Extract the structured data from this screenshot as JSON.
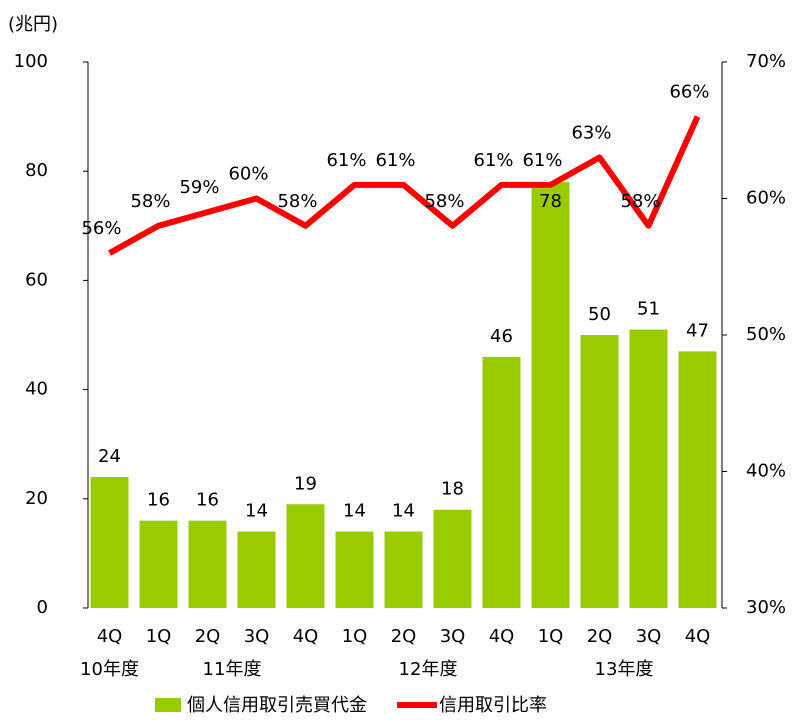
{
  "chart_data": {
    "type": "bar_line",
    "y_unit_label": "(兆円)",
    "categories": [
      "4Q",
      "1Q",
      "2Q",
      "3Q",
      "4Q",
      "1Q",
      "2Q",
      "3Q",
      "4Q",
      "1Q",
      "2Q",
      "3Q",
      "4Q"
    ],
    "category_groups": [
      "10年度",
      "11年度",
      "11年度",
      "11年度",
      "11年度",
      "12年度",
      "12年度",
      "12年度",
      "12年度",
      "13年度",
      "13年度",
      "13年度",
      "13年度"
    ],
    "series": [
      {
        "name": "個人信用取引売買代金",
        "type": "bar",
        "color": "#99cc00",
        "values": [
          24,
          16,
          16,
          14,
          19,
          14,
          14,
          18,
          46,
          78,
          50,
          51,
          47
        ]
      },
      {
        "name": "信用取引比率",
        "type": "line",
        "axis": "y2",
        "color": "#ff0000",
        "values": [
          56,
          58,
          59,
          60,
          58,
          61,
          61,
          58,
          61,
          61,
          63,
          58,
          66
        ],
        "value_labels": [
          "56%",
          "58%",
          "59%",
          "60%",
          "58%",
          "61%",
          "61%",
          "58%",
          "61%",
          "61%",
          "63%",
          "58%",
          "66%"
        ]
      }
    ],
    "ylim": [
      0,
      100
    ],
    "yticks": [
      0,
      20,
      40,
      60,
      80,
      100
    ],
    "y2lim": [
      30,
      70
    ],
    "y2ticks": [
      {
        "value": 30,
        "label": "30%"
      },
      {
        "value": 40,
        "label": "40%"
      },
      {
        "value": 50,
        "label": "50%"
      },
      {
        "value": 60,
        "label": "60%"
      },
      {
        "value": 70,
        "label": "70%"
      }
    ],
    "grid": false,
    "legend": "bottom"
  }
}
